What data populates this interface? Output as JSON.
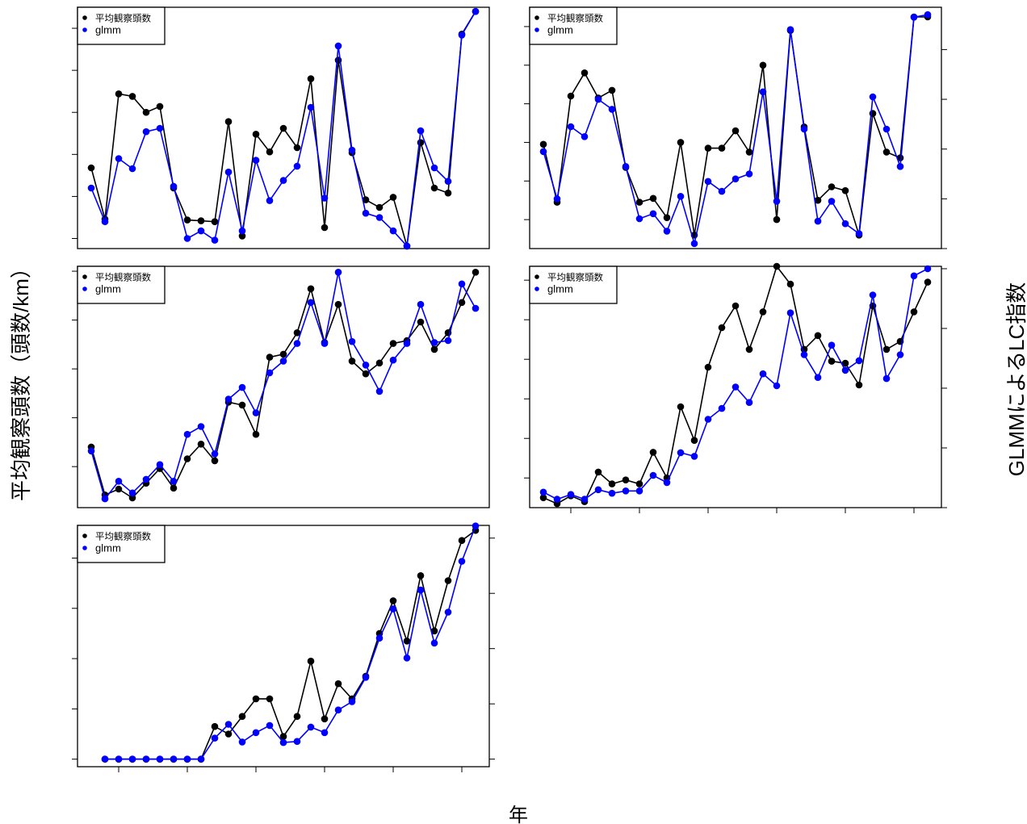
{
  "figure": {
    "ylabel_left": "平均観察頭数（頭数/km）",
    "ylabel_right": "GLMMによるLC指数",
    "xlabel": "年",
    "colors": {
      "avg": "#000000",
      "glmm": "#0000ff"
    }
  },
  "chart_data": [
    {
      "type": "line",
      "legend_position": "top-left",
      "x": [
        1993,
        1994,
        1995,
        1996,
        1997,
        1998,
        1999,
        2000,
        2001,
        2002,
        2003,
        2004,
        2005,
        2006,
        2007,
        2008,
        2009,
        2010,
        2011,
        2012,
        2013,
        2014,
        2015,
        2016,
        2017,
        2018,
        2019,
        2020,
        2021
      ],
      "left_ylim": [
        2.38,
        5.25
      ],
      "left_ticks": [
        "2.5",
        "3.0",
        "3.5",
        "4.0",
        "4.5",
        "5.0"
      ],
      "right_ylim": [
        2.38,
        5.25
      ],
      "right_ticks": [],
      "xticks": [],
      "series": [
        {
          "name": "平均観察頭数",
          "color": "#000000",
          "axis": "left",
          "values": [
            3.34,
            2.73,
            4.22,
            4.19,
            4.0,
            4.07,
            3.1,
            2.72,
            2.71,
            2.7,
            3.89,
            2.53,
            3.74,
            3.53,
            3.81,
            3.58,
            4.4,
            2.63,
            4.62,
            3.52,
            2.96,
            2.87,
            2.99,
            2.41,
            3.64,
            3.1,
            3.04,
            4.93,
            5.2
          ]
        },
        {
          "name": "glmm",
          "color": "#0000ff",
          "axis": "right",
          "values": [
            3.1,
            2.7,
            3.45,
            3.33,
            3.77,
            3.81,
            3.12,
            2.5,
            2.59,
            2.48,
            3.29,
            2.59,
            3.43,
            2.95,
            3.19,
            3.36,
            4.06,
            2.98,
            4.79,
            3.55,
            2.8,
            2.75,
            2.59,
            2.41,
            3.78,
            3.34,
            3.18,
            4.92,
            5.2
          ]
        }
      ]
    },
    {
      "type": "line",
      "legend_position": "top-left",
      "x": [
        1993,
        1994,
        1995,
        1996,
        1997,
        1998,
        1999,
        2000,
        2001,
        2002,
        2003,
        2004,
        2005,
        2006,
        2007,
        2008,
        2009,
        2010,
        2011,
        2012,
        2013,
        2014,
        2015,
        2016,
        2017,
        2018,
        2019,
        2020,
        2021
      ],
      "left_ylim": [
        65,
        190
      ],
      "left_ticks": [
        "80",
        "100",
        "120",
        "140",
        "160",
        "180"
      ],
      "right_ylim": [
        60,
        157
      ],
      "right_ticks": [
        "60",
        "80",
        "100",
        "120",
        "140"
      ],
      "xticks": [],
      "series": [
        {
          "name": "平均観察頭数",
          "color": "#000000",
          "axis": "left",
          "values": [
            119,
            89,
            144,
            156,
            143,
            147,
            107,
            89,
            91,
            81,
            120,
            72,
            117,
            117,
            126,
            115,
            160,
            80,
            178,
            128,
            90,
            97,
            95,
            72,
            135,
            115,
            112,
            185,
            185
          ]
        },
        {
          "name": "glmm",
          "color": "#0000ff",
          "axis": "right",
          "values": [
            99,
            80,
            109,
            105,
            120,
            116,
            93,
            72,
            74,
            67,
            81,
            62,
            87,
            83,
            88,
            90,
            123,
            79,
            148,
            108,
            71,
            79,
            70,
            66,
            121,
            108,
            93,
            153,
            154
          ]
        }
      ]
    },
    {
      "type": "line",
      "legend_position": "top-left",
      "x": [
        1993,
        1994,
        1995,
        1996,
        1997,
        1998,
        1999,
        2000,
        2001,
        2002,
        2003,
        2004,
        2005,
        2006,
        2007,
        2008,
        2009,
        2010,
        2011,
        2012,
        2013,
        2014,
        2015,
        2016,
        2017,
        2018,
        2019,
        2020,
        2021
      ],
      "left_ylim": [
        0.58,
        3.05
      ],
      "left_ticks": [
        "1.0",
        "1.5",
        "2.0",
        "2.5",
        "3.0"
      ],
      "right_ylim": [
        0.58,
        3.05
      ],
      "right_ticks": [],
      "xticks": [],
      "series": [
        {
          "name": "平均観察頭数",
          "color": "#000000",
          "axis": "left",
          "values": [
            1.2,
            0.71,
            0.77,
            0.68,
            0.83,
            0.98,
            0.78,
            1.08,
            1.23,
            1.06,
            1.66,
            1.63,
            1.33,
            2.12,
            2.15,
            2.37,
            2.82,
            2.27,
            2.66,
            2.08,
            1.95,
            2.06,
            2.26,
            2.29,
            2.48,
            2.2,
            2.37,
            2.68,
            2.99
          ]
        },
        {
          "name": "glmm",
          "color": "#0000ff",
          "axis": "right",
          "values": [
            1.16,
            0.67,
            0.85,
            0.73,
            0.87,
            1.02,
            0.85,
            1.33,
            1.41,
            1.13,
            1.69,
            1.81,
            1.55,
            1.96,
            2.08,
            2.26,
            2.68,
            2.26,
            2.99,
            2.28,
            2.04,
            1.77,
            2.09,
            2.26,
            2.66,
            2.27,
            2.29,
            2.87,
            2.62
          ]
        }
      ]
    },
    {
      "type": "line",
      "legend_position": "top-left",
      "x": [
        1993,
        1994,
        1995,
        1996,
        1997,
        1998,
        1999,
        2000,
        2001,
        2002,
        2003,
        2004,
        2005,
        2006,
        2007,
        2008,
        2009,
        2010,
        2011,
        2012,
        2013,
        2014,
        2015,
        2016,
        2017,
        2018,
        2019,
        2020,
        2021
      ],
      "left_ylim": [
        25,
        147
      ],
      "left_ticks": [
        "40",
        "60",
        "80",
        "100",
        "120",
        "140"
      ],
      "right_ylim": [
        0,
        202
      ],
      "right_ticks": [
        "0",
        "50",
        "100",
        "150",
        "200"
      ],
      "xticks": [
        "1995",
        "2000",
        "2005",
        "2010",
        "2015",
        "2020"
      ],
      "series": [
        {
          "name": "平均観察頭数",
          "color": "#000000",
          "axis": "left",
          "values": [
            30,
            27,
            31,
            28,
            43,
            37,
            39,
            37,
            53,
            40,
            76,
            59,
            96,
            116,
            127,
            105,
            124,
            147,
            138,
            105,
            112,
            99,
            98,
            87,
            127,
            105,
            109,
            124,
            139
          ]
        },
        {
          "name": "glmm",
          "color": "#0000ff",
          "axis": "right",
          "values": [
            13,
            7,
            11,
            7,
            15,
            12,
            14,
            14,
            27,
            21,
            46,
            43,
            74,
            83,
            101,
            88,
            112,
            102,
            163,
            128,
            109,
            136,
            115,
            123,
            178,
            108,
            128,
            194,
            200
          ]
        }
      ]
    },
    {
      "type": "line",
      "legend_position": "top-left",
      "x": [
        1993,
        1994,
        1995,
        1996,
        1997,
        1998,
        1999,
        2000,
        2001,
        2002,
        2003,
        2004,
        2005,
        2006,
        2007,
        2008,
        2009,
        2010,
        2011,
        2012,
        2013,
        2014,
        2015,
        2016,
        2017,
        2018,
        2019,
        2020,
        2021
      ],
      "left_ylim": [
        -0.03,
        0.93
      ],
      "left_ticks": [
        "0.0",
        "0.2",
        "0.4",
        "0.6",
        "0.8"
      ],
      "right_ylim": [
        -13.7,
        423
      ],
      "right_ticks": [
        "0",
        "100",
        "200",
        "300",
        "400"
      ],
      "xticks": [
        "1995",
        "2000",
        "2005",
        "2010",
        "2015",
        "2020"
      ],
      "series": [
        {
          "name": "平均観察頭数",
          "color": "#000000",
          "axis": "left",
          "values": [
            null,
            0.0,
            0.0,
            0.0,
            0.0,
            0.0,
            0.0,
            0.0,
            0.0,
            0.13,
            0.1,
            0.17,
            0.24,
            0.24,
            0.09,
            0.17,
            0.39,
            0.16,
            0.3,
            0.24,
            0.33,
            0.5,
            0.63,
            0.47,
            0.73,
            0.51,
            0.71,
            0.87,
            0.91
          ]
        },
        {
          "name": "glmm",
          "color": "#0000ff",
          "axis": "right",
          "values": [
            null,
            0,
            0,
            0,
            0,
            0,
            0,
            0,
            0,
            38,
            63,
            31,
            48,
            61,
            30,
            32,
            58,
            48,
            89,
            104,
            148,
            219,
            272,
            183,
            306,
            210,
            266,
            358,
            422
          ]
        }
      ]
    }
  ]
}
